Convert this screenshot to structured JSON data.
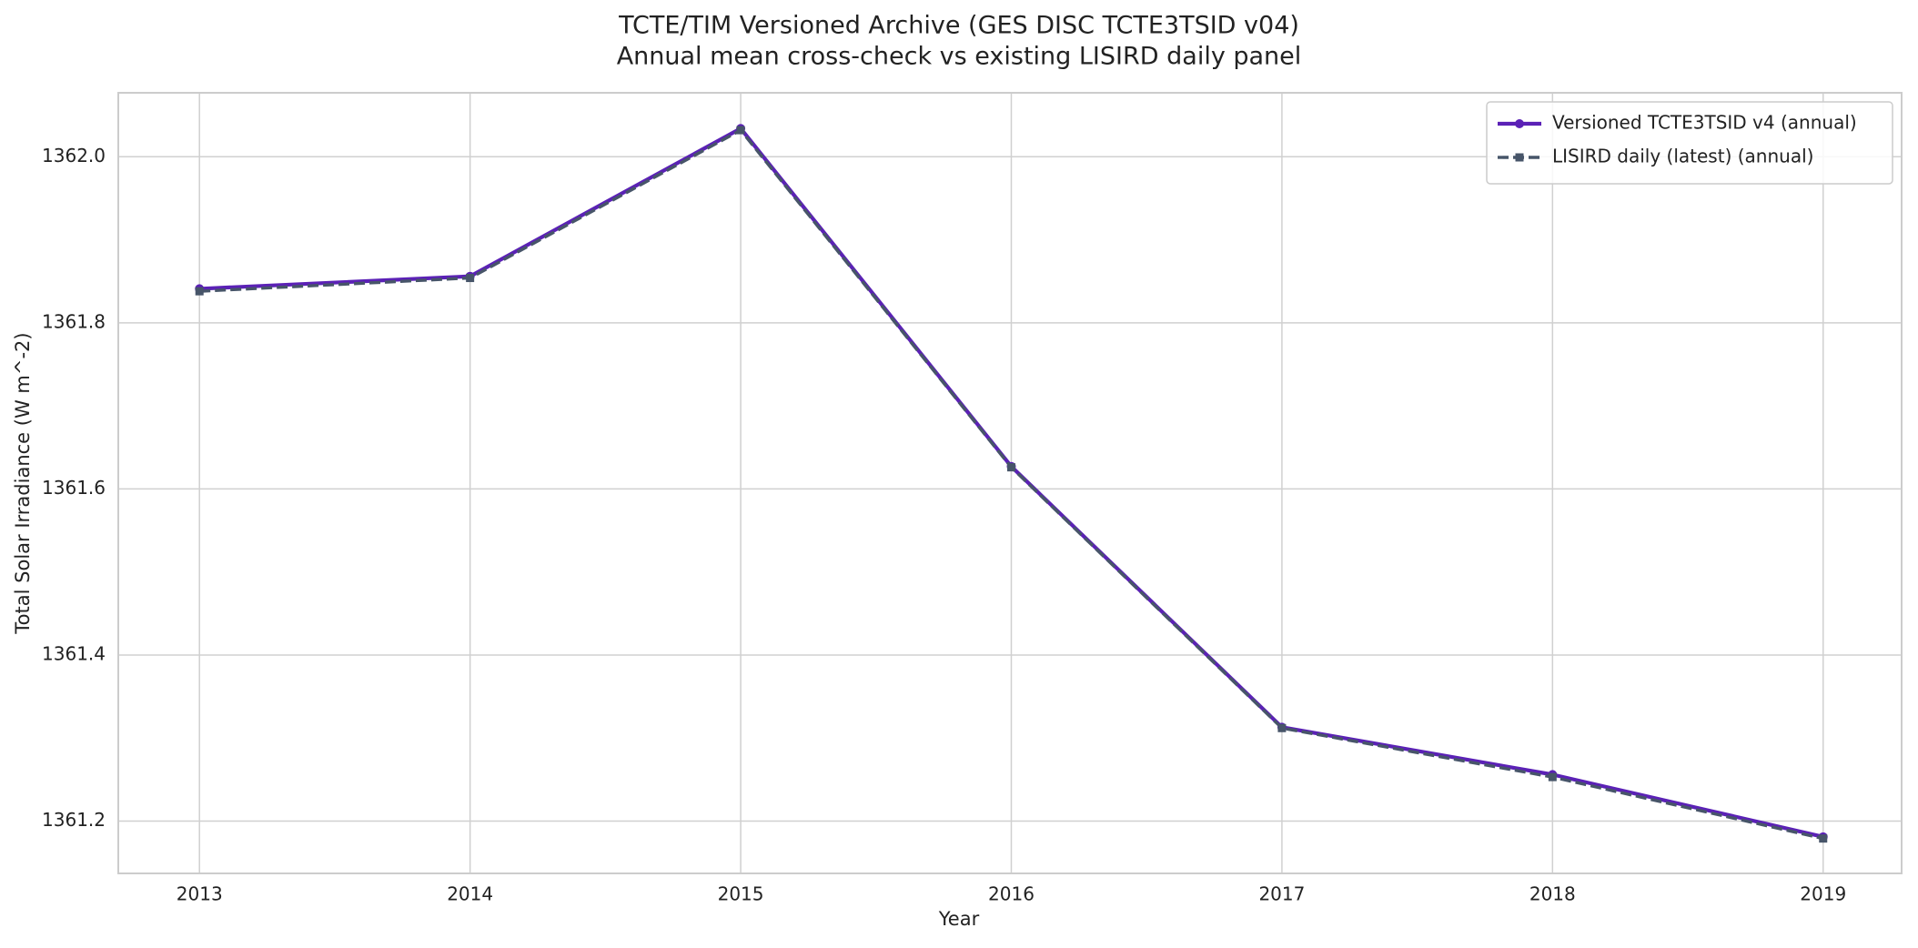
{
  "chart_data": {
    "type": "line",
    "title": "TCTE/TIM Versioned Archive (GES DISC TCTE3TSID v04)",
    "subtitle": "Annual mean cross-check vs existing LISIRD daily panel",
    "x_label": "Year",
    "y_label": "Total Solar Irradiance (W m^-2)",
    "x": [
      2013,
      2014,
      2015,
      2016,
      2017,
      2018,
      2019
    ],
    "series": [
      {
        "name": "Versioned TCTE3TSID v4 (annual)",
        "color": "#5b21b6",
        "line_style": "solid",
        "marker": "circle",
        "values": [
          1361.841,
          1361.856,
          1362.034,
          1361.627,
          1361.313,
          1361.256,
          1361.181
        ]
      },
      {
        "name": "LISIRD daily (latest) (annual)",
        "color": "#475569",
        "line_style": "dashed",
        "marker": "square",
        "values": [
          1361.838,
          1361.854,
          1362.032,
          1361.626,
          1361.312,
          1361.253,
          1361.179
        ]
      }
    ],
    "xlim": [
      2012.7,
      2019.29
    ],
    "ylim": [
      1361.137,
      1362.077
    ],
    "xticks": [
      2013,
      2014,
      2015,
      2016,
      2017,
      2018,
      2019
    ],
    "yticks": [
      1361.2,
      1361.4,
      1361.6,
      1361.8,
      {
        "value": 1362,
        "label": "1362.0"
      }
    ],
    "grid": true,
    "legend": "upper-right"
  }
}
